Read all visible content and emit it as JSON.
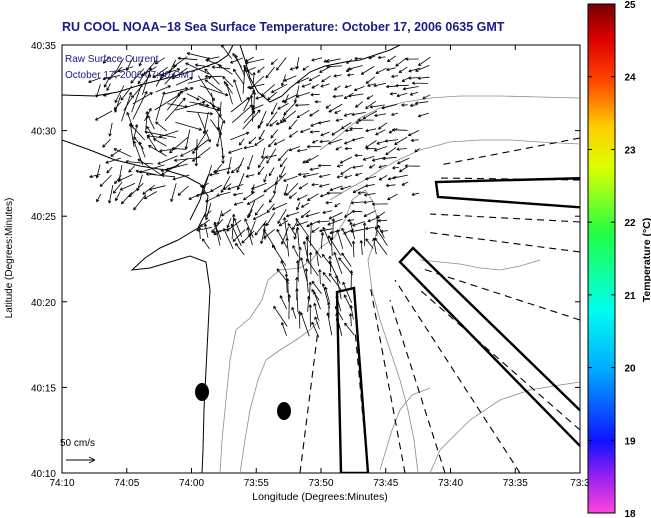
{
  "title": "RU COOL  NOAA−18  Sea Surface Temperature:  October 17, 2006 0635 GMT",
  "legend": {
    "line1": "Raw Surface Current",
    "line2": "October 17, 2006 07:00 GMT"
  },
  "scale": {
    "label": "50 cm/s"
  },
  "axes": {
    "xlabel": "Longitude (Degrees:Minutes)",
    "ylabel": "Latitude (Degrees:Minutes)",
    "xticks": [
      "74:10",
      "74:05",
      "74:00",
      "73:55",
      "73:50",
      "73:45",
      "73:40",
      "73:35",
      "73:3"
    ],
    "yticks": [
      "40:35",
      "40:30",
      "40:25",
      "40:20",
      "40:15",
      "40:10"
    ]
  },
  "colorbar": {
    "label": "Temperature (°C)",
    "ticks": [
      "25",
      "24",
      "23",
      "22",
      "21",
      "20",
      "19",
      "18"
    ]
  },
  "colors": {
    "title": "#1a1a8a",
    "bathymetry": "#8c8c8c",
    "vectors": "#000000"
  }
}
